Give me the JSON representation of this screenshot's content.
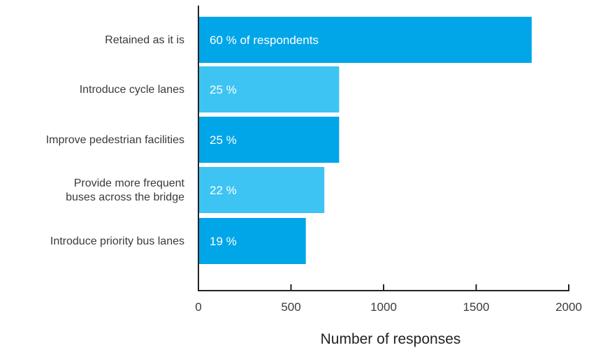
{
  "chart_data": {
    "type": "bar",
    "orientation": "horizontal",
    "categories": [
      [
        "Retained as it is"
      ],
      [
        "Introduce cycle lanes"
      ],
      [
        "Improve pedestrian facilities"
      ],
      [
        "Provide more frequent",
        "buses across the bridge"
      ],
      [
        "Introduce priority bus lanes"
      ]
    ],
    "values": [
      1800,
      760,
      760,
      680,
      580
    ],
    "data_labels": [
      "60 % of respondents",
      "25 %",
      "25 %",
      "22 %",
      "19 %"
    ],
    "bar_colors": [
      "#00a6e8",
      "#3dc4f3",
      "#00a6e8",
      "#3dc4f3",
      "#00a6e8"
    ],
    "xlabel": "Number of responses",
    "xlim": [
      0,
      2000
    ],
    "xticks": [
      0,
      500,
      1000,
      1500,
      2000
    ],
    "grid": false,
    "legend": "none"
  }
}
